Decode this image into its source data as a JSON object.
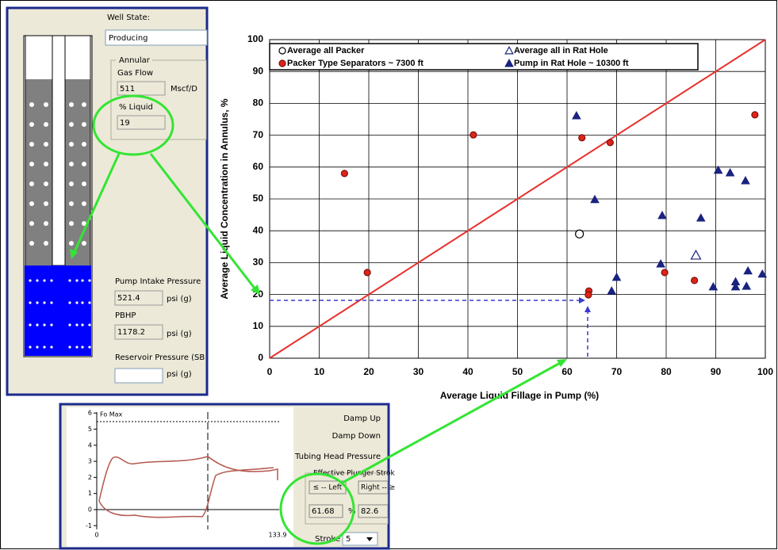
{
  "well_panel": {
    "well_state_label": "Well State:",
    "well_state": "Producing",
    "annular_group": "Annular",
    "gas_flow_label": "Gas Flow",
    "gas_flow": "511",
    "gas_flow_unit": "Mscf/D",
    "liquid_label": "% Liquid",
    "liquid": "19",
    "pip_label": "Pump Intake Pressure",
    "pip": "521.4",
    "pip_unit": "psi (g)",
    "pbhp_label": "PBHP",
    "pbhp": "1178.2",
    "pbhp_unit": "psi (g)",
    "reservoir_label": "Reservoir Pressure (SB",
    "reservoir_unit": "psi (g)"
  },
  "dyno_panel": {
    "fo_max_label": "Fo Max",
    "yticks": [
      6,
      5,
      4,
      3,
      2,
      1,
      0,
      -1
    ],
    "xticks": [
      0,
      133.9
    ],
    "damp_up": "Damp Up",
    "damp_down": "Damp Down",
    "thp": "Tubing Head Pressure",
    "eps_group": "Effective Plunger Strok",
    "left_button": "≤ -- Left",
    "right_button": "Right -- ≥",
    "left_value": "61.68",
    "percent": "%",
    "right_value": "82.6",
    "stroke_label": "Stroke",
    "stroke": "5"
  },
  "chart_data": {
    "type": "scatter",
    "xlabel": "Average Liquid Fillage in Pump (%)",
    "ylabel": "Average Liquid Concentration in Annulus, %",
    "xlim": [
      0,
      100
    ],
    "ylim": [
      0,
      100
    ],
    "xticks": [
      0,
      10,
      20,
      30,
      40,
      50,
      60,
      70,
      80,
      90,
      100
    ],
    "yticks": [
      0,
      10,
      20,
      30,
      40,
      50,
      60,
      70,
      80,
      90,
      100
    ],
    "grid": true,
    "legend": "top",
    "series": [
      {
        "name": "Average all Packer",
        "color": "#000000",
        "marker": "circle",
        "filled": false,
        "x": [
          62.5
        ],
        "values": [
          39
        ]
      },
      {
        "name": "Average all in Rat Hole",
        "color": "#1a237e",
        "marker": "triangle",
        "filled": false,
        "x": [
          86
        ],
        "values": [
          32.3
        ]
      },
      {
        "name": "Packer Type Separators ~ 7300 ft",
        "color": "#e02418",
        "marker": "circle",
        "filled": true,
        "x": [
          15.1,
          19.7,
          41.1,
          63,
          68.7,
          64.4,
          64.3,
          79.7,
          85.7,
          97.9
        ],
        "values": [
          58,
          26.9,
          70.1,
          69.2,
          67.7,
          21.1,
          19.9,
          26.9,
          24.4,
          76.4
        ]
      },
      {
        "name": "Pump in Rat Hole ~ 10300 ft",
        "color": "#1a237e",
        "marker": "triangle",
        "filled": true,
        "x": [
          61.9,
          65.6,
          79.2,
          87,
          90.5,
          92.9,
          96,
          78.9,
          70,
          69,
          89.5,
          94,
          94,
          96.2,
          96.5,
          99.4
        ],
        "values": [
          76.1,
          49.8,
          44.8,
          44,
          59,
          58.2,
          55.7,
          29.6,
          25.4,
          21.1,
          22.4,
          22.4,
          24,
          22.6,
          27.4,
          26.4
        ]
      }
    ]
  }
}
